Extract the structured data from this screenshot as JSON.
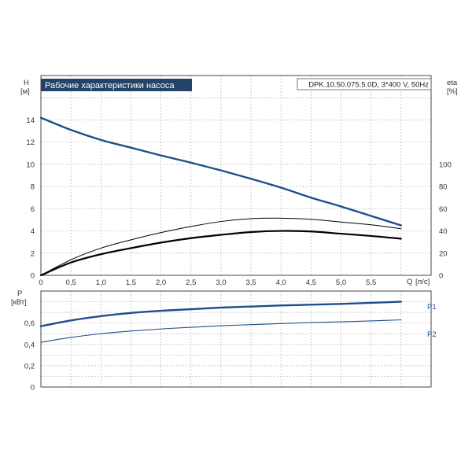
{
  "chart_data": [
    {
      "type": "line",
      "title": "Рабочие характеристики насоса",
      "model_label": "DPK.10.50.075.5.0D, 3*400 V, 50Hz",
      "ylabel": "H",
      "yunit": "[м]",
      "y2label": "eta",
      "y2unit": "[%]",
      "xlabel": "Q",
      "xunit": "[л/с]",
      "xlim": [
        0,
        6.5
      ],
      "ylim": [
        0,
        18
      ],
      "y2lim": [
        0,
        180
      ],
      "x_ticks": [
        "0",
        "0,5",
        "1,0",
        "1,5",
        "2,0",
        "2,5",
        "3,0",
        "3,5",
        "4,0",
        "4,5",
        "5,0",
        "5,5"
      ],
      "y_ticks": [
        "0",
        "2",
        "4",
        "6",
        "8",
        "10",
        "12",
        "14"
      ],
      "y2_ticks": [
        "0",
        "20",
        "40",
        "60",
        "80",
        "100"
      ],
      "grid": true,
      "colors": {
        "head": "#1f4e8c",
        "eta_thin": "#000000",
        "eta_thick": "#000000",
        "title_bg": "#234466"
      },
      "series": [
        {
          "axis": "left",
          "style": "head",
          "x": [
            0,
            0.5,
            1,
            1.5,
            2,
            2.5,
            3,
            3.5,
            4,
            4.5,
            5,
            5.5,
            6
          ],
          "y": [
            14.2,
            13.1,
            12.2,
            11.5,
            10.8,
            10.15,
            9.45,
            8.7,
            7.9,
            7.0,
            6.2,
            5.35,
            4.5
          ]
        },
        {
          "axis": "right",
          "style": "eta_thin",
          "x": [
            0,
            0.5,
            1,
            1.5,
            2,
            2.5,
            3,
            3.5,
            4,
            4.5,
            5,
            5.5,
            6
          ],
          "y": [
            0,
            14,
            24.5,
            32,
            38.5,
            44,
            48.5,
            51,
            51.5,
            50.5,
            48,
            45.5,
            42
          ]
        },
        {
          "axis": "right",
          "style": "eta_thick",
          "x": [
            0,
            0.5,
            1,
            1.5,
            2,
            2.5,
            3,
            3.5,
            4,
            4.5,
            5,
            5.5,
            6
          ],
          "y": [
            0,
            11.5,
            19,
            24.5,
            29.5,
            33.5,
            36.5,
            39,
            40,
            39.5,
            37.5,
            35.5,
            33
          ]
        }
      ]
    },
    {
      "type": "line",
      "ylabel": "P",
      "yunit": "[кВт]",
      "xlim": [
        0,
        6.5
      ],
      "ylim": [
        0,
        0.9
      ],
      "y_ticks": [
        "0",
        "0,2",
        "0,4",
        "0,6"
      ],
      "grid": true,
      "colors": {
        "P1": "#1f4e8c",
        "P2": "#1f4e8c"
      },
      "series": [
        {
          "name": "P1",
          "style": "P1",
          "x": [
            0,
            0.5,
            1,
            1.5,
            2,
            2.5,
            3,
            3.5,
            4,
            4.5,
            5,
            5.5,
            6
          ],
          "y": [
            0.57,
            0.625,
            0.665,
            0.695,
            0.715,
            0.73,
            0.745,
            0.755,
            0.765,
            0.772,
            0.78,
            0.79,
            0.8
          ]
        },
        {
          "name": "P2",
          "style": "P2",
          "x": [
            0,
            0.5,
            1,
            1.5,
            2,
            2.5,
            3,
            3.5,
            4,
            4.5,
            5,
            5.5,
            6
          ],
          "y": [
            0.42,
            0.465,
            0.5,
            0.525,
            0.545,
            0.56,
            0.575,
            0.585,
            0.595,
            0.605,
            0.612,
            0.62,
            0.63
          ]
        }
      ]
    }
  ]
}
